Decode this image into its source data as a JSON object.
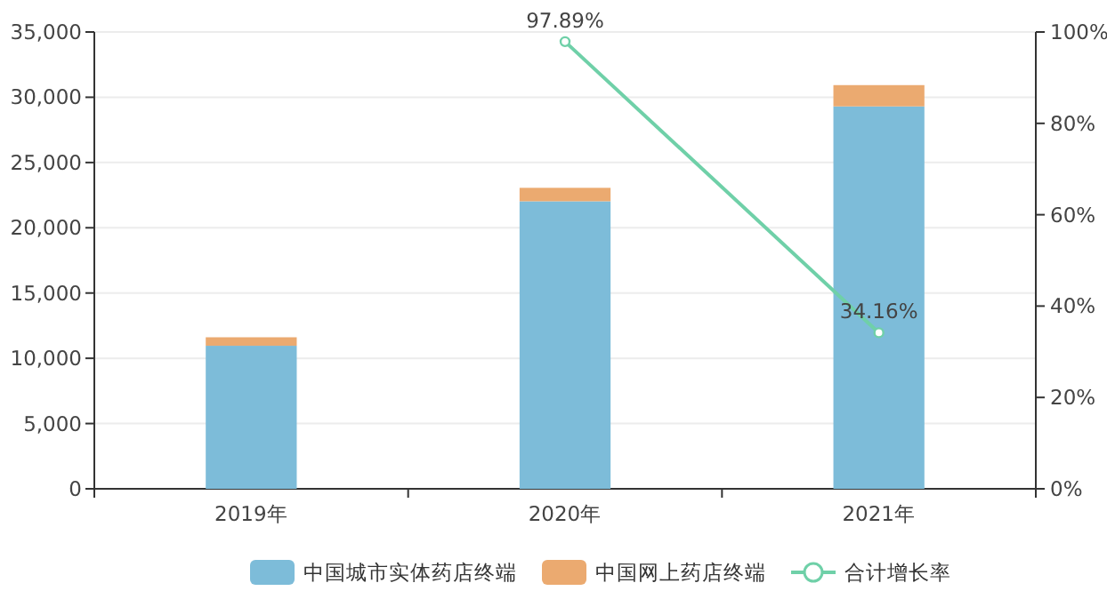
{
  "chart_data": {
    "type": "bar",
    "stacked": true,
    "categories": [
      "2019年",
      "2020年",
      "2021年"
    ],
    "series": [
      {
        "name": "中国城市实体药店终端",
        "color": "#7dbcd9",
        "values": [
          10960,
          22030,
          29300
        ]
      },
      {
        "name": "中国网上药店终端",
        "color": "#ebaa70",
        "values": [
          650,
          1030,
          1630
        ]
      },
      {
        "name": "合计增长率",
        "type": "line",
        "axis": "y2",
        "color": "#6fd0a8",
        "marker": "circle",
        "values": [
          null,
          97.89,
          34.16
        ],
        "value_labels": [
          null,
          "97.89%",
          "34.16%"
        ]
      }
    ],
    "ylim": [
      0,
      35000
    ],
    "yticks": [
      {
        "value": 0,
        "label": "0"
      },
      {
        "value": 5000,
        "label": "5,000"
      },
      {
        "value": 10000,
        "label": "10,000"
      },
      {
        "value": 15000,
        "label": "15,000"
      },
      {
        "value": 20000,
        "label": "20,000"
      },
      {
        "value": 25000,
        "label": "25,000"
      },
      {
        "value": 30000,
        "label": "30,000"
      },
      {
        "value": 35000,
        "label": "35,000"
      }
    ],
    "y2lim": [
      0,
      100
    ],
    "y2ticks": [
      {
        "value": 0,
        "label": "0%"
      },
      {
        "value": 20,
        "label": "20%"
      },
      {
        "value": 40,
        "label": "40%"
      },
      {
        "value": 60,
        "label": "60%"
      },
      {
        "value": 80,
        "label": "80%"
      },
      {
        "value": 100,
        "label": "100%"
      }
    ],
    "grid": "y",
    "legend": "bottom"
  }
}
